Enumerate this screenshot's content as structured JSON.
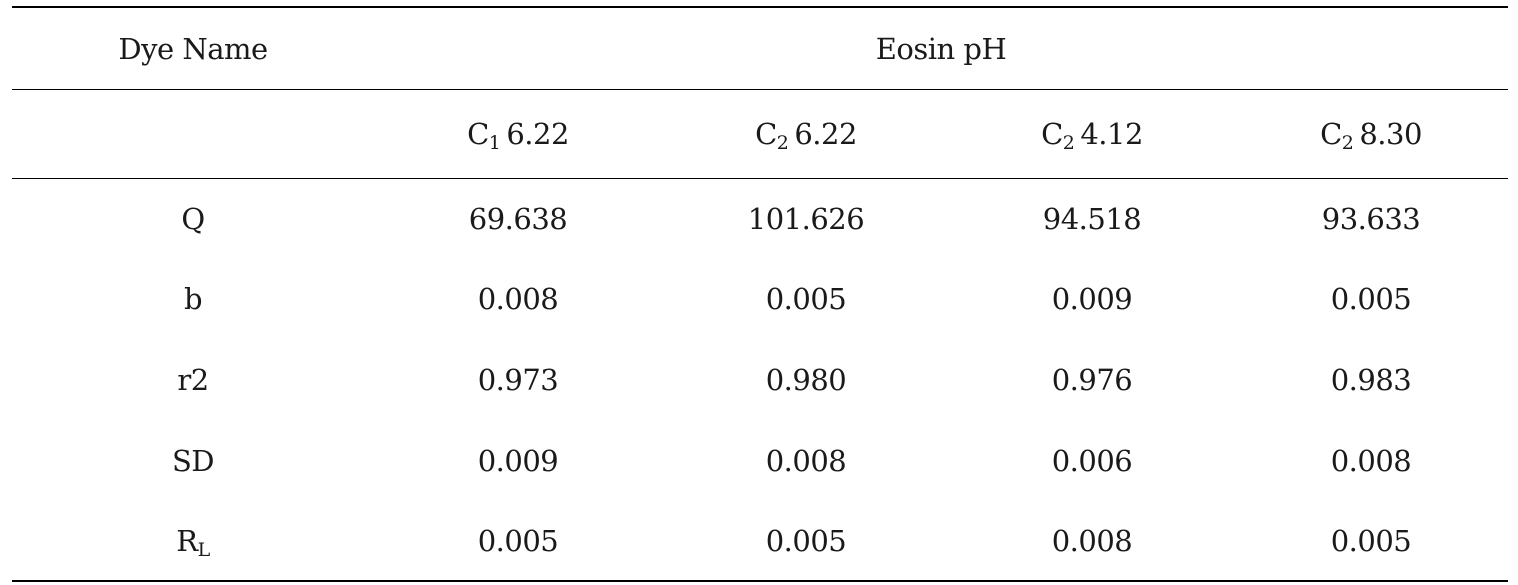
{
  "table": {
    "header": {
      "row_label": "Dye Name",
      "group_label": "Eosin pH"
    },
    "subheaders": [
      {
        "main": "C",
        "sub": "1",
        "value": "6.22"
      },
      {
        "main": "C",
        "sub": "2",
        "value": "6.22"
      },
      {
        "main": "C",
        "sub": "2",
        "value": "4.12"
      },
      {
        "main": "C",
        "sub": "2",
        "value": "8.30"
      }
    ],
    "rows": [
      {
        "label": "Q",
        "label_sub": "",
        "values": [
          "69.638",
          "101.626",
          "94.518",
          "93.633"
        ]
      },
      {
        "label": "b",
        "label_sub": "",
        "values": [
          "0.008",
          "0.005",
          "0.009",
          "0.005"
        ]
      },
      {
        "label": "r2",
        "label_sub": "",
        "values": [
          "0.973",
          "0.980",
          "0.976",
          "0.983"
        ]
      },
      {
        "label": "SD",
        "label_sub": "",
        "values": [
          "0.009",
          "0.008",
          "0.006",
          "0.008"
        ]
      },
      {
        "label": "R",
        "label_sub": "L",
        "values": [
          "0.005",
          "0.005",
          "0.008",
          "0.005"
        ]
      }
    ]
  }
}
